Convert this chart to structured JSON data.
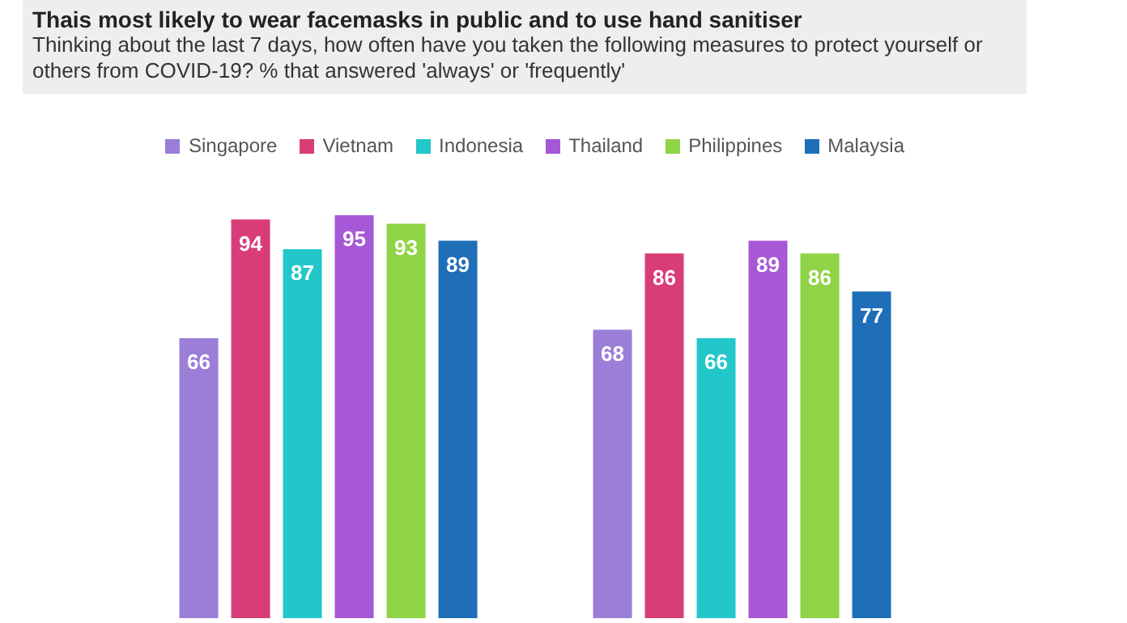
{
  "chart_data": {
    "type": "bar",
    "title": "Thais most likely to wear facemasks in public and to use hand sanitiser",
    "subtitle": "Thinking about the last 7 days, how often have you taken the following measures to protect yourself or others from COVID-19? % that answered 'always' or 'frequently'",
    "categories": [
      null,
      null
    ],
    "data_labels": true,
    "legend": "top",
    "series": [
      {
        "name": "Singapore",
        "color": "#9a7ed8",
        "values": [
          66,
          68
        ]
      },
      {
        "name": "Vietnam",
        "color": "#d83d78",
        "values": [
          94,
          86
        ]
      },
      {
        "name": "Indonesia",
        "color": "#22c7c9",
        "values": [
          87,
          66
        ]
      },
      {
        "name": "Thailand",
        "color": "#a658d6",
        "values": [
          95,
          89
        ]
      },
      {
        "name": "Philippines",
        "color": "#8fd446",
        "values": [
          93,
          86
        ]
      },
      {
        "name": "Malaysia",
        "color": "#1f6fb8",
        "values": [
          89,
          77
        ]
      }
    ]
  }
}
